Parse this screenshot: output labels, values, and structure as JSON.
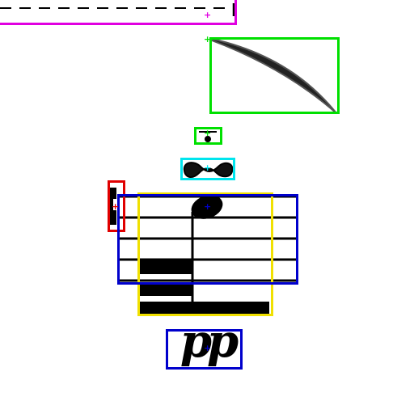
{
  "annotation_colors": {
    "magenta": "#e000e0",
    "green": "#00e000",
    "cyan": "#00e5ee",
    "red": "#e00000",
    "blue": "#0000cc",
    "yellow": "#f0e000",
    "glyph": "#000000"
  },
  "annotations": [
    {
      "color": "magenta",
      "symbol": "octave-line"
    },
    {
      "color": "green",
      "symbol": "slur"
    },
    {
      "color": "green",
      "symbol": "fermata"
    },
    {
      "color": "cyan",
      "symbol": "turn-ornament"
    },
    {
      "color": "red",
      "symbol": "accidental"
    },
    {
      "color": "blue",
      "symbol": "staff"
    },
    {
      "color": "yellow",
      "symbol": "note-with-beams"
    },
    {
      "color": "blue",
      "symbol": "dynamic-pp"
    }
  ],
  "dynamic": {
    "text": "pp"
  },
  "marker_glyph": "+"
}
